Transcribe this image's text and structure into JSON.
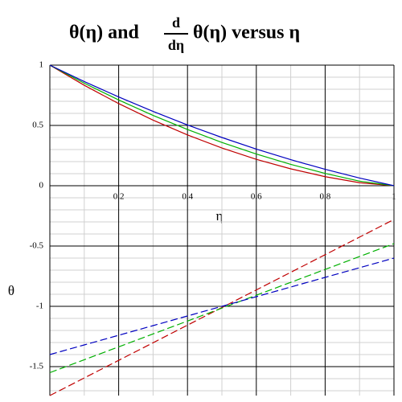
{
  "chart_data": {
    "type": "line",
    "title": {
      "before": "θ(η)  and",
      "numerator": "d",
      "denominator": "dη",
      "after": "θ(η)  versus η"
    },
    "x_label": "η",
    "y_label": "θ",
    "x": [
      0,
      0.1,
      0.2,
      0.3,
      0.4,
      0.5,
      0.6,
      0.7,
      0.8,
      0.9,
      1
    ],
    "series": [
      {
        "color": "#c00000",
        "dashed": false,
        "values": [
          1,
          0.833,
          0.681,
          0.544,
          0.421,
          0.313,
          0.219,
          0.14,
          0.075,
          0.025,
          0
        ]
      },
      {
        "color": "#00b000",
        "dashed": false,
        "values": [
          1,
          0.85,
          0.711,
          0.583,
          0.466,
          0.359,
          0.263,
          0.177,
          0.102,
          0.038,
          0
        ]
      },
      {
        "color": "#0000c0",
        "dashed": false,
        "values": [
          1,
          0.864,
          0.736,
          0.616,
          0.504,
          0.4,
          0.304,
          0.216,
          0.136,
          0.064,
          0
        ]
      },
      {
        "color": "#c00000",
        "dashed": true,
        "values": [
          -1.74,
          -1.594,
          -1.448,
          -1.302,
          -1.156,
          -1.01,
          -0.864,
          -0.718,
          -0.572,
          -0.426,
          -0.28
        ]
      },
      {
        "color": "#00b000",
        "dashed": true,
        "values": [
          -1.55,
          -1.443,
          -1.336,
          -1.229,
          -1.122,
          -1.015,
          -0.908,
          -0.801,
          -0.694,
          -0.587,
          -0.48
        ]
      },
      {
        "color": "#0000c0",
        "dashed": true,
        "values": [
          -1.4,
          -1.32,
          -1.24,
          -1.16,
          -1.08,
          -1.0,
          -0.92,
          -0.84,
          -0.76,
          -0.68,
          -0.6
        ]
      }
    ],
    "xlim": [
      0,
      1
    ],
    "ylim": [
      -1.74,
      1
    ],
    "xticks": [
      0.2,
      0.4,
      0.6,
      0.8,
      1
    ],
    "yticks": [
      -1.5,
      -1,
      -0.5,
      0,
      0.5,
      1
    ],
    "xminorticks": [
      0.1,
      0.3,
      0.5,
      0.7,
      0.9
    ],
    "yminorticks": [
      -1.7,
      -1.6,
      -1.4,
      -1.3,
      -1.2,
      -1.1,
      -0.9,
      -0.8,
      -0.7,
      -0.6,
      -0.4,
      -0.3,
      -0.2,
      -0.1,
      0.1,
      0.2,
      0.3,
      0.4,
      0.6,
      0.7,
      0.8,
      0.9
    ],
    "grid": true
  }
}
